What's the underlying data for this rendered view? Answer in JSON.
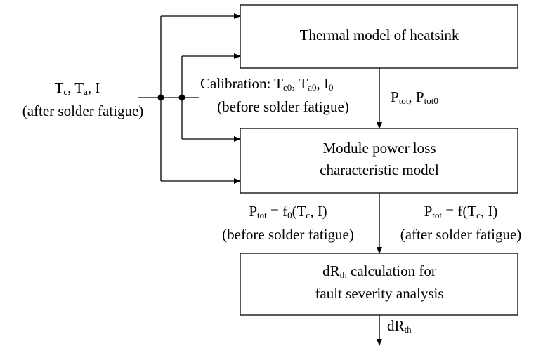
{
  "blocks": [
    {
      "lines": [
        [
          {
            "text": "Thermal model of heatsink"
          }
        ]
      ]
    },
    {
      "lines": [
        [
          {
            "text": "Module power loss"
          }
        ],
        [
          {
            "text": "characteristic model"
          }
        ]
      ]
    },
    {
      "lines": [
        [
          {
            "text": "dR"
          },
          {
            "sub": "th"
          },
          {
            "text": " calculation for"
          }
        ],
        [
          {
            "text": "fault severity analysis"
          }
        ]
      ]
    }
  ],
  "labels": [
    {
      "lines": [
        [
          {
            "text": "T"
          },
          {
            "sub": "c"
          },
          {
            "text": ", T"
          },
          {
            "sub": "a"
          },
          {
            "text": ", I"
          }
        ],
        [
          {
            "text": "(after solder fatigue)"
          }
        ]
      ]
    },
    {
      "lines": [
        [
          {
            "text": "Calibration: T"
          },
          {
            "sub": "c0"
          },
          {
            "text": ", T"
          },
          {
            "sub": "a0"
          },
          {
            "text": ", I"
          },
          {
            "sub": "0"
          }
        ],
        [
          {
            "text": "(before solder fatigue)"
          }
        ]
      ]
    },
    {
      "lines": [
        [
          {
            "text": "P"
          },
          {
            "sub": "tot"
          },
          {
            "text": ", P"
          },
          {
            "sub": "tot0"
          }
        ]
      ]
    },
    {
      "lines": [
        [
          {
            "text": "P"
          },
          {
            "sub": "tot"
          },
          {
            "text": " = f"
          },
          {
            "sub": "0"
          },
          {
            "text": "(T"
          },
          {
            "sub": "c"
          },
          {
            "text": ", I)"
          }
        ],
        [
          {
            "text": "(before solder fatigue)"
          }
        ]
      ]
    },
    {
      "lines": [
        [
          {
            "text": "P"
          },
          {
            "sub": "tot"
          },
          {
            "text": " = f(T"
          },
          {
            "sub": "c"
          },
          {
            "text": ", I)"
          }
        ],
        [
          {
            "text": "(after solder fatigue)"
          }
        ]
      ]
    },
    {
      "lines": [
        [
          {
            "text": "dR"
          },
          {
            "sub": "th"
          }
        ]
      ]
    }
  ]
}
